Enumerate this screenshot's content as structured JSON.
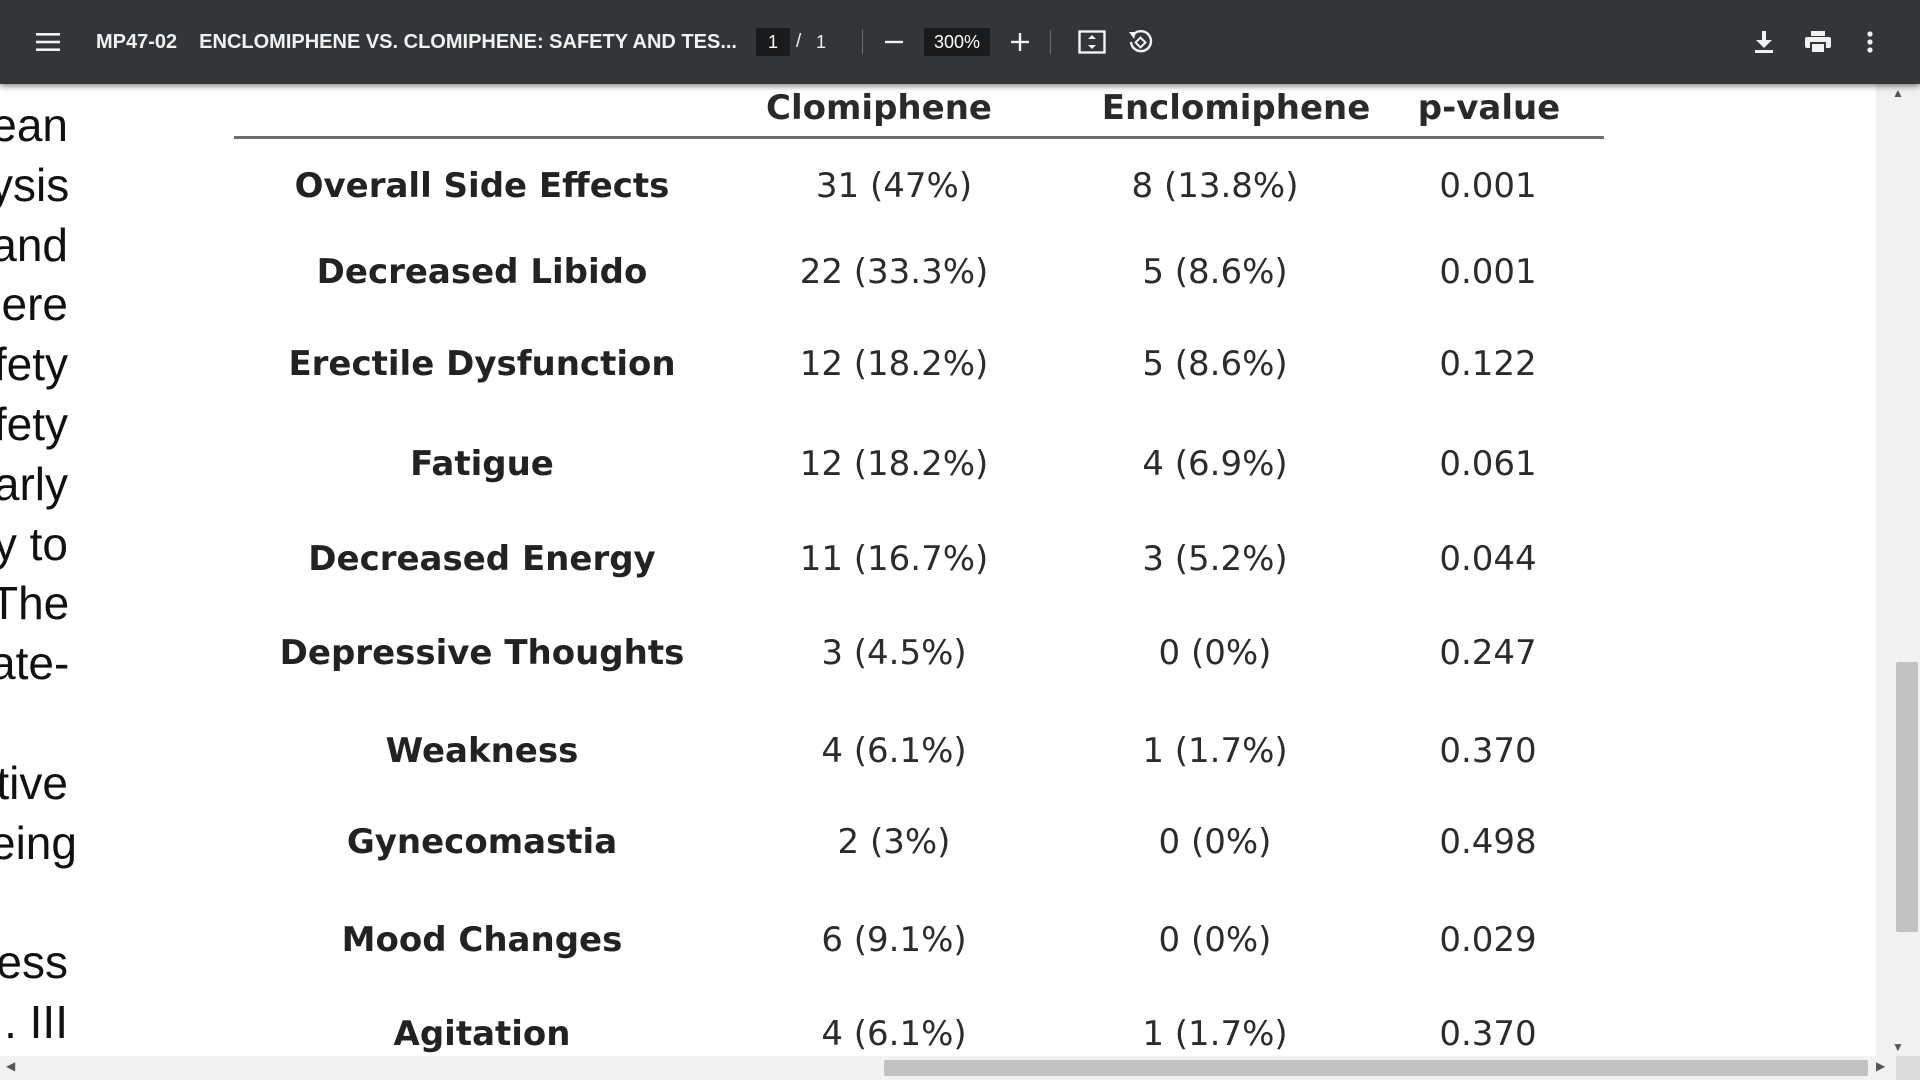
{
  "toolbar": {
    "doc_id": "MP47-02",
    "doc_title": "ENCLOMIPHENE VS. CLOMIPHENE: SAFETY AND TES...",
    "current_page": "1",
    "page_separator": "/",
    "total_pages": "1",
    "zoom": "300%",
    "icons": [
      "menu-icon",
      "zoom-out-icon",
      "zoom-in-icon",
      "fit-page-icon",
      "rotate-icon",
      "download-icon",
      "print-icon",
      "more-vert-icon"
    ]
  },
  "left_fragments": [
    "ean",
    "ysis",
    "and",
    "ere",
    "fety",
    "fety",
    "arly",
    "y to",
    "The",
    "ate-",
    "",
    "tive",
    "eing",
    "",
    "ess",
    ". III"
  ],
  "table": {
    "headers": [
      "Clomiphene",
      "Enclomiphene",
      "p-value"
    ],
    "rows": [
      {
        "label": "Overall Side Effects",
        "clomiphene": "31 (47%)",
        "enclomiphene": "8 (13.8%)",
        "p": "0.001"
      },
      {
        "label": "Decreased Libido",
        "clomiphene": "22 (33.3%)",
        "enclomiphene": "5 (8.6%)",
        "p": "0.001"
      },
      {
        "label": "Erectile Dysfunction",
        "clomiphene": "12 (18.2%)",
        "enclomiphene": "5 (8.6%)",
        "p": "0.122"
      },
      {
        "label": "Fatigue",
        "clomiphene": "12 (18.2%)",
        "enclomiphene": "4 (6.9%)",
        "p": "0.061"
      },
      {
        "label": "Decreased Energy",
        "clomiphene": "11 (16.7%)",
        "enclomiphene": "3 (5.2%)",
        "p": "0.044"
      },
      {
        "label": "Depressive Thoughts",
        "clomiphene": "3 (4.5%)",
        "enclomiphene": "0 (0%)",
        "p": "0.247"
      },
      {
        "label": "Weakness",
        "clomiphene": "4 (6.1%)",
        "enclomiphene": "1 (1.7%)",
        "p": "0.370"
      },
      {
        "label": "Gynecomastia",
        "clomiphene": "2 (3%)",
        "enclomiphene": "0 (0%)",
        "p": "0.498"
      },
      {
        "label": "Mood Changes",
        "clomiphene": "6 (9.1%)",
        "enclomiphene": "0 (0%)",
        "p": "0.029"
      },
      {
        "label": "Agitation",
        "clomiphene": "4 (6.1%)",
        "enclomiphene": "1 (1.7%)",
        "p": "0.370"
      }
    ]
  },
  "colors": {
    "toolbar_bg": "#323639",
    "viewer_bg": "#525659",
    "page_bg": "#ffffff"
  }
}
